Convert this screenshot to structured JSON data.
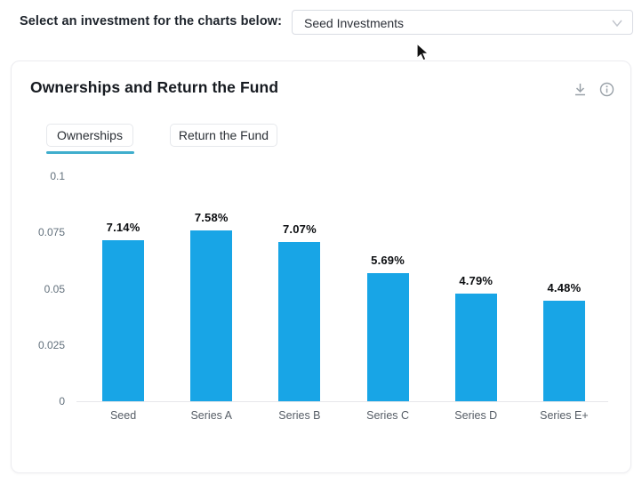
{
  "page": {
    "selector_label": "Select an investment for the charts below:",
    "select": {
      "value": "Seed Investments",
      "chevron_icon": "chevron-down-icon"
    }
  },
  "card": {
    "title": "Ownerships and Return the Fund",
    "actions": {
      "download_icon": "download-icon",
      "info_icon": "info-icon"
    },
    "tabs": [
      {
        "label": "Ownerships",
        "active": true
      },
      {
        "label": "Return the Fund",
        "active": false
      }
    ]
  },
  "colors": {
    "bar": "#18a5e6",
    "tab_underline": "#3faecd",
    "icon_gray": "#99a1a8",
    "chevron_gray": "#c0c4cc"
  },
  "chart_data": {
    "type": "bar",
    "title": "Ownerships",
    "xlabel": "",
    "ylabel": "",
    "categories": [
      "Seed",
      "Series A",
      "Series B",
      "Series C",
      "Series D",
      "Series E+"
    ],
    "values": [
      0.0714,
      0.0758,
      0.0707,
      0.0569,
      0.0479,
      0.0448
    ],
    "value_labels": [
      "7.14%",
      "7.58%",
      "7.07%",
      "5.69%",
      "4.79%",
      "4.48%"
    ],
    "yticks": [
      0,
      0.025,
      0.05,
      0.075,
      0.1
    ],
    "ytick_labels": [
      "0",
      "0.025",
      "0.05",
      "0.075",
      "0.1"
    ],
    "ylim": [
      0,
      0.1
    ],
    "grid": false,
    "legend": "none"
  }
}
